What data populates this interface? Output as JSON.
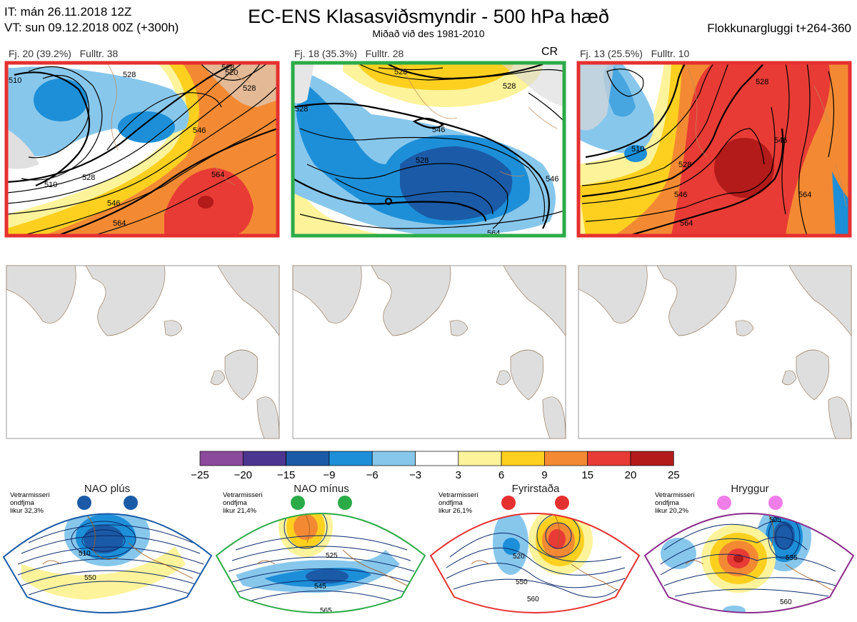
{
  "header": {
    "issue_time": "IT: mán 26.11.2018 12Z",
    "valid_time": "VT: sun 09.12.2018 00Z  (+300h)",
    "title": "EC-ENS Klasasviðsmyndir - 500 hPa hæð",
    "subtitle": "Miðað við des 1981-2010",
    "window": "Flokkunargluggi t+264-360"
  },
  "top_panels": [
    {
      "label_fj": "Fj. 20 (39.2%)",
      "label_fulltr": "Fulltr. 38",
      "tag": "",
      "border_color": "#e53030",
      "contour_labels": [
        "510",
        "528",
        "528",
        "520",
        "528",
        "546",
        "564",
        "528",
        "546",
        "564",
        "510"
      ]
    },
    {
      "label_fj": "Fj. 18 (35.3%)",
      "label_fulltr": "Fulltr. 28",
      "tag": "CR",
      "border_color": "#2bab48",
      "contour_labels": [
        "528",
        "528",
        "546",
        "528",
        "546",
        "564",
        "528"
      ]
    },
    {
      "label_fj": "Fj. 13 (25.5%)",
      "label_fulltr": "Fulltr. 10",
      "tag": "",
      "border_color": "#e53030",
      "contour_labels": [
        "510",
        "528",
        "528",
        "546",
        "546",
        "564",
        "564"
      ]
    }
  ],
  "colorbar": {
    "ticks": [
      "−25",
      "−20",
      "−15",
      "−9",
      "−6",
      "−3",
      "3",
      "6",
      "9",
      "15",
      "20",
      "25"
    ],
    "colors": [
      "#8c4a9c",
      "#4b3590",
      "#1b5aa6",
      "#1d8fd8",
      "#88c7ec",
      "#ffffff",
      "#fdf39a",
      "#fdd020",
      "#f38a33",
      "#e83b35",
      "#b31a1a"
    ]
  },
  "regimes": [
    {
      "name": "NAO plús",
      "text": "Vetrarmisseri\nondfjma\nlikur 32,3%",
      "border_color": "#1b5aa6",
      "dot_color": "#1b5aa6",
      "contour_labels": [
        "510",
        "550"
      ]
    },
    {
      "name": "NAO mínus",
      "text": "Vetrarmisseri\nondfjma\nlikur 21,4%",
      "border_color": "#2bab48",
      "dot_color": "#2bab48",
      "contour_labels": [
        "525",
        "545",
        "565"
      ]
    },
    {
      "name": "Fyrirstaða",
      "text": "Vetrarmisseri\nondfjma\nlikur 26,1%",
      "border_color": "#e53030",
      "dot_color": "#e53030",
      "contour_labels": [
        "520",
        "550",
        "560"
      ]
    },
    {
      "name": "Hryggur",
      "text": "Vetrarmisseri\nondfjma\nlikur 20,2%",
      "border_color": "#8a2a8a",
      "dot_color": "#f07ee8",
      "contour_labels": [
        "505",
        "535",
        "560"
      ]
    }
  ]
}
